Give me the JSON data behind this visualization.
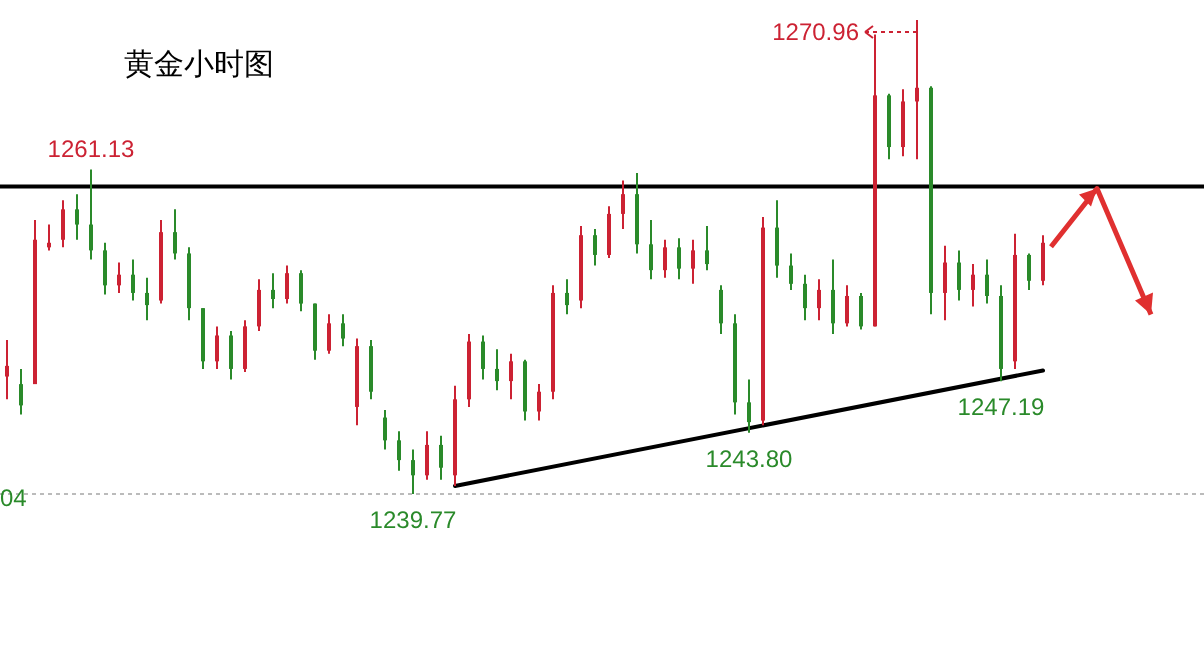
{
  "chart_data": {
    "type": "candlestick",
    "title": "黄金小时图",
    "categories": [
      null,
      null,
      null,
      null,
      null,
      null,
      null,
      null,
      null,
      null,
      null,
      null,
      null,
      null,
      null,
      null,
      null,
      null,
      null,
      null,
      null,
      null,
      null,
      null,
      null,
      null,
      null,
      null,
      null,
      null,
      null,
      null,
      null,
      null,
      null,
      null,
      null,
      null,
      null,
      null,
      null,
      null,
      null,
      null,
      null,
      null,
      null,
      null,
      null,
      null,
      null,
      null,
      null,
      null,
      null,
      null,
      null,
      null,
      null,
      null,
      null,
      null,
      null,
      null,
      null,
      null,
      null,
      null,
      null,
      null,
      null,
      null,
      null,
      null,
      null
    ],
    "ohlc": [
      [
        1247.5,
        1249.9,
        1246.0,
        1248.2
      ],
      [
        1247.0,
        1248.0,
        1245.0,
        1245.6
      ],
      [
        1247.0,
        1257.8,
        1247.0,
        1256.5
      ],
      [
        1256.0,
        1257.5,
        1255.8,
        1256.3
      ],
      [
        1256.5,
        1259.1,
        1256.0,
        1258.5
      ],
      [
        1258.5,
        1259.5,
        1256.5,
        1257.5
      ],
      [
        1257.5,
        1261.13,
        1255.2,
        1255.8
      ],
      [
        1255.8,
        1256.3,
        1252.9,
        1253.5
      ],
      [
        1253.5,
        1255.0,
        1253.0,
        1254.2
      ],
      [
        1254.2,
        1255.2,
        1252.5,
        1253.0
      ],
      [
        1253.0,
        1254.0,
        1251.2,
        1252.2
      ],
      [
        1252.5,
        1257.8,
        1252.3,
        1257.0
      ],
      [
        1257.0,
        1258.5,
        1255.2,
        1255.6
      ],
      [
        1255.6,
        1256.0,
        1251.2,
        1252.0
      ],
      [
        1252.0,
        1252.0,
        1248.0,
        1248.5
      ],
      [
        1248.5,
        1250.8,
        1248.0,
        1250.2
      ],
      [
        1250.2,
        1250.5,
        1247.3,
        1248.0
      ],
      [
        1248.0,
        1251.2,
        1247.8,
        1250.8
      ],
      [
        1250.8,
        1253.9,
        1250.5,
        1253.2
      ],
      [
        1253.2,
        1254.3,
        1252.0,
        1252.6
      ],
      [
        1252.6,
        1254.8,
        1252.3,
        1254.3
      ],
      [
        1254.3,
        1254.5,
        1251.8,
        1252.3
      ],
      [
        1252.3,
        1252.3,
        1248.6,
        1249.2
      ],
      [
        1249.2,
        1251.6,
        1249.0,
        1251.0
      ],
      [
        1251.0,
        1251.6,
        1249.5,
        1250.0
      ],
      [
        1245.5,
        1250.0,
        1244.3,
        1249.5
      ],
      [
        1249.5,
        1249.9,
        1246.0,
        1246.5
      ],
      [
        1244.8,
        1245.3,
        1242.7,
        1243.3
      ],
      [
        1243.3,
        1243.9,
        1241.3,
        1242.0
      ],
      [
        1242.0,
        1242.7,
        1239.77,
        1241.0
      ],
      [
        1241.0,
        1243.9,
        1240.7,
        1243.0
      ],
      [
        1243.0,
        1243.6,
        1240.7,
        1241.5
      ],
      [
        1241.0,
        1246.9,
        1240.3,
        1246.0
      ],
      [
        1246.0,
        1250.3,
        1245.5,
        1249.8
      ],
      [
        1249.8,
        1250.2,
        1247.3,
        1248.0
      ],
      [
        1248.0,
        1249.3,
        1246.6,
        1247.2
      ],
      [
        1247.2,
        1249.0,
        1246.0,
        1248.5
      ],
      [
        1248.5,
        1248.6,
        1244.6,
        1245.2
      ],
      [
        1245.2,
        1247.0,
        1244.6,
        1246.5
      ],
      [
        1246.5,
        1253.5,
        1246.0,
        1253.0
      ],
      [
        1253.0,
        1253.9,
        1251.6,
        1252.2
      ],
      [
        1252.5,
        1257.4,
        1252.0,
        1256.8
      ],
      [
        1256.8,
        1257.2,
        1254.8,
        1255.5
      ],
      [
        1255.5,
        1258.7,
        1255.3,
        1258.2
      ],
      [
        1258.2,
        1260.4,
        1257.2,
        1259.5
      ],
      [
        1259.5,
        1260.9,
        1255.6,
        1256.2
      ],
      [
        1256.2,
        1257.8,
        1253.9,
        1254.5
      ],
      [
        1254.5,
        1256.5,
        1254.0,
        1256.0
      ],
      [
        1256.0,
        1256.6,
        1253.9,
        1254.6
      ],
      [
        1254.6,
        1256.5,
        1253.6,
        1255.8
      ],
      [
        1255.8,
        1257.4,
        1254.5,
        1254.9
      ],
      [
        1253.2,
        1253.5,
        1250.3,
        1251.0
      ],
      [
        1251.0,
        1251.6,
        1245.0,
        1245.8
      ],
      [
        1245.8,
        1247.3,
        1243.8,
        1244.5
      ],
      [
        1244.6,
        1258.0,
        1244.3,
        1257.3
      ],
      [
        1257.3,
        1259.1,
        1254.0,
        1254.8
      ],
      [
        1254.8,
        1255.6,
        1253.2,
        1253.6
      ],
      [
        1253.6,
        1254.2,
        1251.2,
        1252.0
      ],
      [
        1252.0,
        1253.9,
        1251.2,
        1253.2
      ],
      [
        1253.2,
        1255.2,
        1250.3,
        1251.0
      ],
      [
        1251.0,
        1253.5,
        1250.8,
        1252.8
      ],
      [
        1252.8,
        1253.0,
        1250.6,
        1250.8
      ],
      [
        1250.8,
        1270.0,
        1250.8,
        1266.0
      ],
      [
        1266.0,
        1266.1,
        1261.8,
        1262.6
      ],
      [
        1262.6,
        1266.4,
        1262.0,
        1265.6
      ],
      [
        1265.6,
        1270.96,
        1261.8,
        1266.5
      ],
      [
        1266.5,
        1266.6,
        1251.6,
        1253.0
      ],
      [
        1253.0,
        1256.1,
        1251.2,
        1255.0
      ],
      [
        1255.0,
        1255.8,
        1252.5,
        1253.2
      ],
      [
        1253.2,
        1254.9,
        1252.1,
        1254.2
      ],
      [
        1254.2,
        1255.2,
        1252.3,
        1252.8
      ],
      [
        1252.8,
        1253.5,
        1247.19,
        1248.0
      ],
      [
        1248.5,
        1256.9,
        1248.0,
        1255.5
      ],
      [
        1255.5,
        1255.6,
        1253.2,
        1253.8
      ],
      [
        1253.8,
        1256.8,
        1253.5,
        1256.3
      ]
    ],
    "colors": [
      "#cc2233",
      "#2a8a2a",
      "#cc2233",
      "#cc2233",
      "#cc2233",
      "#2a8a2a",
      "#2a8a2a",
      "#2a8a2a",
      "#cc2233",
      "#2a8a2a",
      "#2a8a2a",
      "#cc2233",
      "#2a8a2a",
      "#2a8a2a",
      "#2a8a2a",
      "#cc2233",
      "#2a8a2a",
      "#cc2233",
      "#cc2233",
      "#2a8a2a",
      "#cc2233",
      "#2a8a2a",
      "#2a8a2a",
      "#cc2233",
      "#2a8a2a",
      "#cc2233",
      "#2a8a2a",
      "#2a8a2a",
      "#2a8a2a",
      "#2a8a2a",
      "#cc2233",
      "#2a8a2a",
      "#cc2233",
      "#cc2233",
      "#2a8a2a",
      "#2a8a2a",
      "#cc2233",
      "#2a8a2a",
      "#cc2233",
      "#cc2233",
      "#2a8a2a",
      "#cc2233",
      "#2a8a2a",
      "#cc2233",
      "#cc2233",
      "#2a8a2a",
      "#2a8a2a",
      "#cc2233",
      "#2a8a2a",
      "#cc2233",
      "#2a8a2a",
      "#2a8a2a",
      "#2a8a2a",
      "#2a8a2a",
      "#cc2233",
      "#2a8a2a",
      "#2a8a2a",
      "#2a8a2a",
      "#cc2233",
      "#2a8a2a",
      "#cc2233",
      "#2a8a2a",
      "#cc2233",
      "#2a8a2a",
      "#cc2233",
      "#cc2233",
      "#2a8a2a",
      "#cc2233",
      "#2a8a2a",
      "#cc2233",
      "#2a8a2a",
      "#2a8a2a",
      "#cc2233",
      "#2a8a2a",
      "#cc2233"
    ],
    "series": [
      {
        "type": "line",
        "color": "#000000",
        "values": [
          null,
          null,
          null,
          null,
          null,
          null,
          null,
          null,
          null,
          null,
          null,
          null,
          null,
          null,
          null,
          null,
          null,
          null,
          null,
          null,
          null,
          null,
          null,
          null,
          null,
          null,
          null,
          null,
          null,
          null,
          null,
          null,
          1240.3,
          null,
          null,
          null,
          null,
          null,
          null,
          null,
          null,
          null,
          null,
          null,
          null,
          null,
          null,
          null,
          null,
          null,
          null,
          null,
          null,
          null,
          null,
          null,
          null,
          null,
          null,
          null,
          null,
          null,
          null,
          null,
          null,
          null,
          null,
          null,
          null,
          null,
          null,
          null,
          null,
          null,
          1247.9
        ]
      }
    ],
    "ref_lines": [
      {
        "axis": "y",
        "value": 1260.0,
        "color": "#000000",
        "line_style": "solid"
      },
      {
        "axis": "y",
        "value": 1239.77,
        "color": "#bbbbbb",
        "line_style": "dotted"
      }
    ],
    "annotations": [
      {
        "text": "1261.13",
        "y": 1261.13
      },
      "1270.96",
      {
        "text": "1239.77",
        "y": 1239.77
      },
      {
        "text": "1243.80",
        "y": 1243.8
      },
      {
        "text": "1247.19",
        "y": 1247.19
      },
      "04"
    ]
  }
}
